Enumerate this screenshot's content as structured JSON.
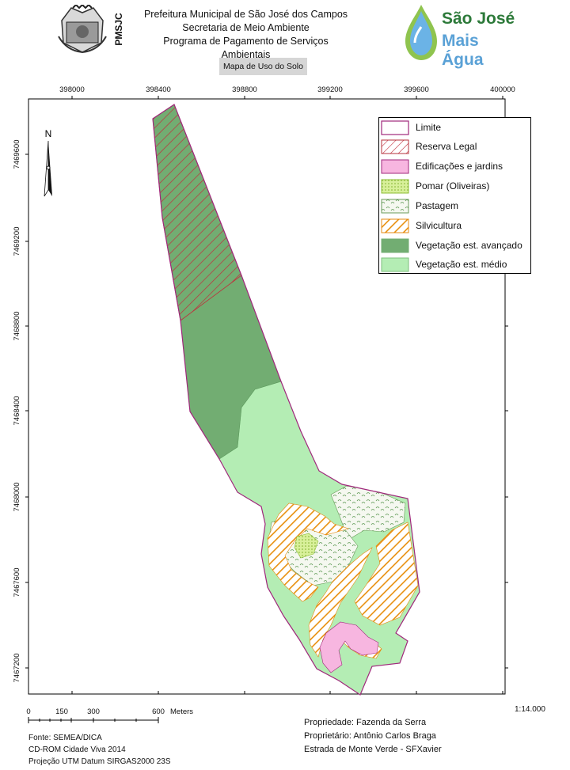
{
  "header": {
    "line1": "Prefeitura Municipal de São José dos Campos",
    "line2": "Secretaria de Meio Ambiente",
    "line3": "Programa de Pagamento de Serviços Ambientais",
    "crest_label": "PMSJC",
    "logo_line1": "São José",
    "logo_line2": "Mais Água"
  },
  "map_title": "Mapa de Uso do Solo",
  "axes": {
    "top_ticks": [
      "398000",
      "398400",
      "398800",
      "399200",
      "399600",
      "400000"
    ],
    "left_ticks": [
      "7469600",
      "7469200",
      "7468800",
      "7468400",
      "7468000",
      "7467600",
      "7467200"
    ]
  },
  "north_label": "N",
  "legend": [
    {
      "label": "Limite",
      "color": "#ffffff",
      "stroke": "#a0287c",
      "pattern": "none"
    },
    {
      "label": "Reserva Legal",
      "color": "#ffffff",
      "stroke": "#b5303b",
      "pattern": "hatch-red"
    },
    {
      "label": "Edificações e jardins",
      "color": "#f7b6e0",
      "stroke": "#a0287c",
      "pattern": "none"
    },
    {
      "label": "Pomar (Oliveiras)",
      "color": "#d8f09a",
      "stroke": "#8fbf3a",
      "pattern": "dots"
    },
    {
      "label": "Pastagem",
      "color": "#f5f8f0",
      "stroke": "#6a9a5a",
      "pattern": "grass"
    },
    {
      "label": "Silvicultura",
      "color": "#ffffff",
      "stroke": "#e58a10",
      "pattern": "hatch-orange"
    },
    {
      "label": "Vegetação est. avançado",
      "color": "#72ad72",
      "stroke": "#72ad72",
      "pattern": "none"
    },
    {
      "label": "Vegetação est. médio",
      "color": "#b4edb4",
      "stroke": "#7cbf7c",
      "pattern": "none"
    }
  ],
  "scale": {
    "labels": [
      "0",
      "150",
      "300",
      "600",
      "Meters"
    ],
    "ratio": "1:14.000"
  },
  "footer_left": [
    "Fonte: SEMEA/DICA",
    "CD-ROM Cidade Viva 2014",
    "Projeção UTM Datum SIRGAS2000 23S"
  ],
  "footer_right": [
    "Propriedade: Fazenda da Serra",
    "Proprietário: Antônio Carlos Braga",
    "Estrada de Monte Verde - SFXavier"
  ]
}
